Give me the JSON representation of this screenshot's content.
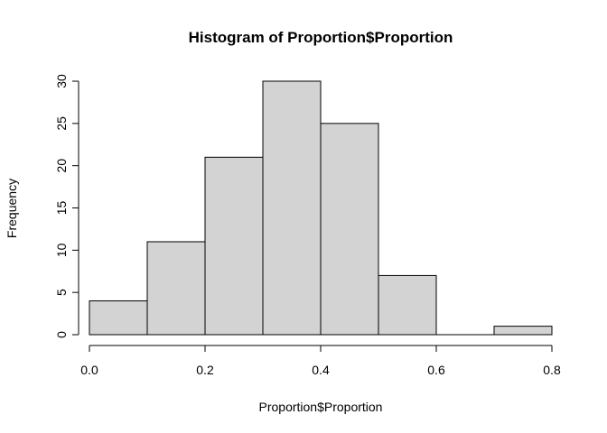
{
  "chart_data": {
    "type": "bar",
    "title": "Histogram of Proportion$Proportion",
    "xlabel": "Proportion$Proportion",
    "ylabel": "Frequency",
    "bins": [
      {
        "start": 0.0,
        "end": 0.1,
        "count": 4
      },
      {
        "start": 0.1,
        "end": 0.2,
        "count": 11
      },
      {
        "start": 0.2,
        "end": 0.3,
        "count": 21
      },
      {
        "start": 0.3,
        "end": 0.4,
        "count": 30
      },
      {
        "start": 0.4,
        "end": 0.5,
        "count": 25
      },
      {
        "start": 0.5,
        "end": 0.6,
        "count": 7
      },
      {
        "start": 0.6,
        "end": 0.7,
        "count": 0
      },
      {
        "start": 0.7,
        "end": 0.8,
        "count": 1
      }
    ],
    "xlim": [
      0.0,
      0.8
    ],
    "ylim": [
      0,
      30
    ],
    "xticks": [
      "0.0",
      "0.2",
      "0.4",
      "0.6",
      "0.8"
    ],
    "yticks": [
      "0",
      "5",
      "10",
      "15",
      "20",
      "25",
      "30"
    ],
    "bar_color": "#d3d3d3",
    "grid": false,
    "legend": "none"
  }
}
